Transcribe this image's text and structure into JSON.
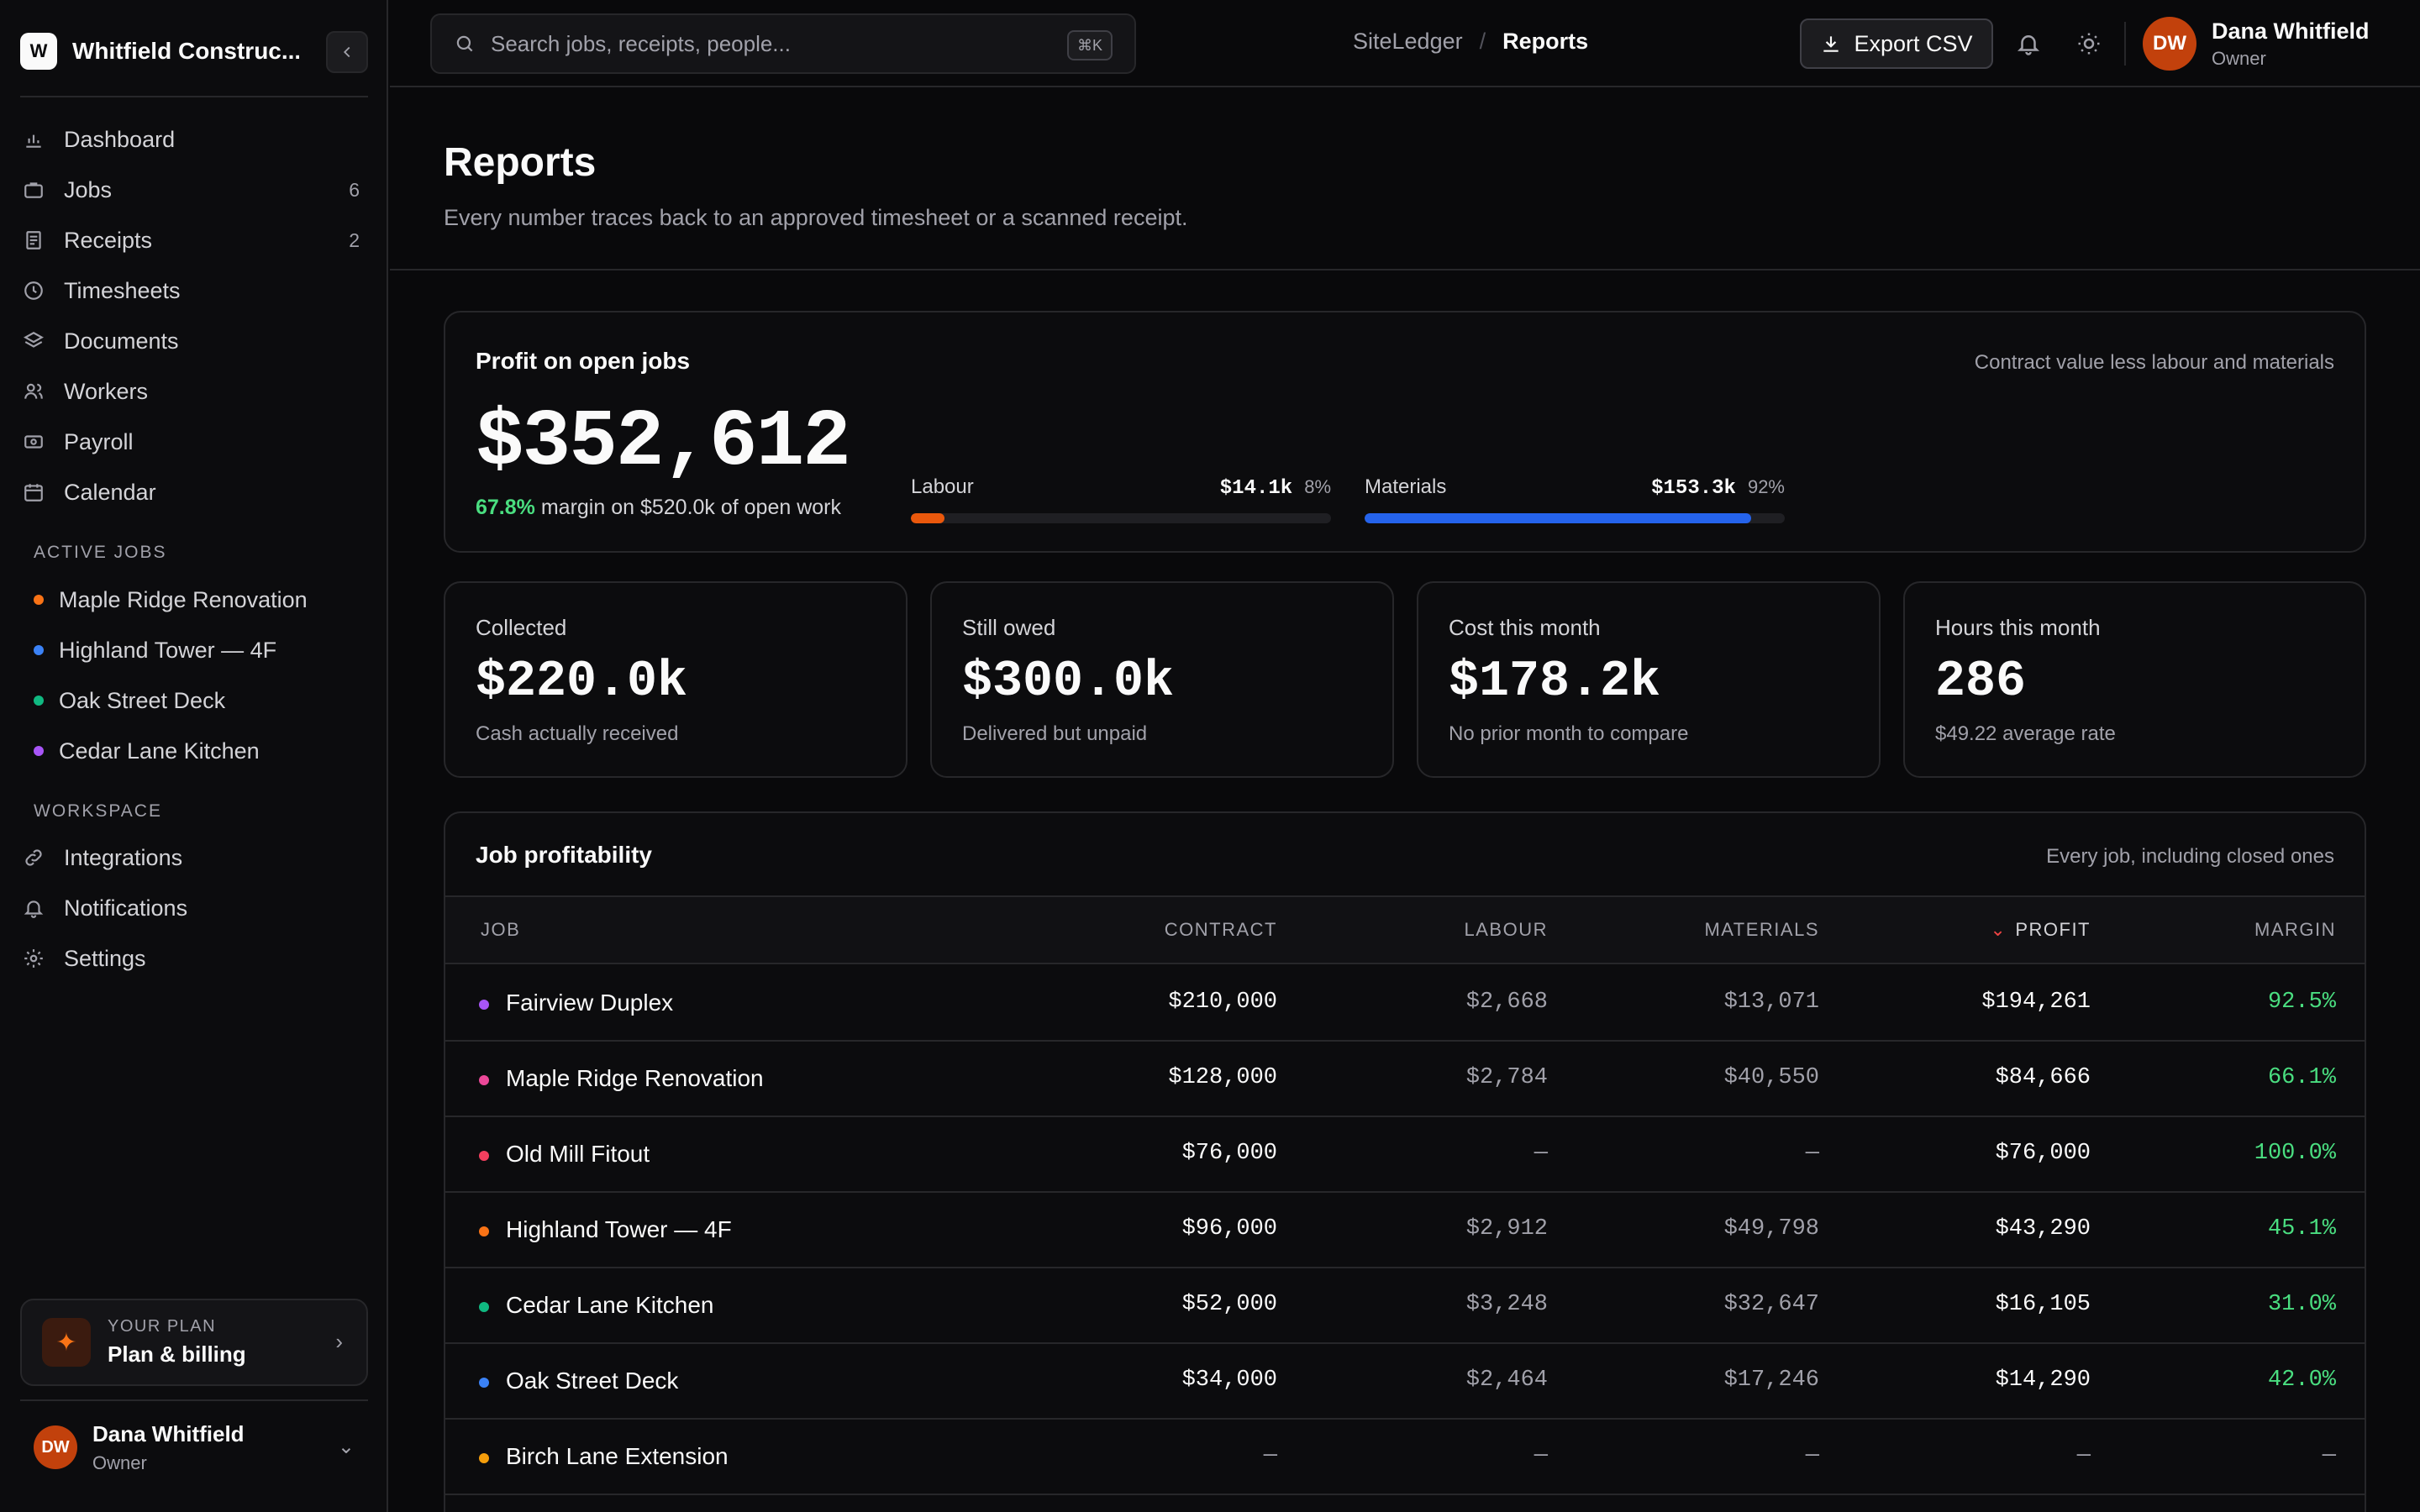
{
  "sidebar": {
    "brand_initial": "W",
    "brand_name": "Whitfield Construc...",
    "nav": [
      {
        "label": "Dashboard",
        "icon": "chart-bar-icon",
        "count": ""
      },
      {
        "label": "Jobs",
        "icon": "briefcase-icon",
        "count": "6"
      },
      {
        "label": "Receipts",
        "icon": "receipt-icon",
        "count": "2"
      },
      {
        "label": "Timesheets",
        "icon": "clock-icon",
        "count": ""
      },
      {
        "label": "Documents",
        "icon": "layers-icon",
        "count": ""
      },
      {
        "label": "Workers",
        "icon": "users-icon",
        "count": ""
      },
      {
        "label": "Payroll",
        "icon": "banknote-icon",
        "count": ""
      },
      {
        "label": "Calendar",
        "icon": "calendar-icon",
        "count": ""
      }
    ],
    "active_jobs_title": "ACTIVE JOBS",
    "active_jobs": [
      {
        "label": "Maple Ridge Renovation",
        "color": "#f97316"
      },
      {
        "label": "Highland Tower — 4F",
        "color": "#3b82f6"
      },
      {
        "label": "Oak Street Deck",
        "color": "#10b981"
      },
      {
        "label": "Cedar Lane Kitchen",
        "color": "#a855f7"
      }
    ],
    "workspace_title": "WORKSPACE",
    "workspace": [
      {
        "label": "Integrations",
        "icon": "link-icon"
      },
      {
        "label": "Notifications",
        "icon": "bell-icon"
      },
      {
        "label": "Settings",
        "icon": "gear-icon"
      }
    ],
    "plan": {
      "kicker": "YOUR PLAN",
      "title": "Plan & billing"
    },
    "user": {
      "initials": "DW",
      "name": "Dana Whitfield",
      "role": "Owner"
    }
  },
  "topbar": {
    "search_placeholder": "Search jobs, receipts, people...",
    "search_shortcut": "⌘K",
    "breadcrumb_root": "SiteLedger",
    "breadcrumb_sep": "/",
    "breadcrumb_current": "Reports",
    "export_label": "Export CSV",
    "user": {
      "initials": "DW",
      "name": "Dana Whitfield",
      "role": "Owner"
    }
  },
  "page": {
    "title": "Reports",
    "subtitle": "Every number traces back to an approved timesheet or a scanned receipt."
  },
  "profit": {
    "title": "Profit on open jobs",
    "note": "Contract value less labour and materials",
    "value": "$352,612",
    "margin_pct": "67.8%",
    "margin_text": " margin on $520.0k of open work",
    "labour": {
      "label": "Labour",
      "amount": "$14.1k",
      "pct_label": "8%",
      "fraction": 0.08,
      "color": "#ea580c"
    },
    "materials": {
      "label": "Materials",
      "amount": "$153.3k",
      "pct_label": "92%",
      "fraction": 0.92,
      "color": "#2563eb"
    }
  },
  "stats": [
    {
      "label": "Collected",
      "value": "$220.0k",
      "sub": "Cash actually received"
    },
    {
      "label": "Still owed",
      "value": "$300.0k",
      "sub": "Delivered but unpaid"
    },
    {
      "label": "Cost this month",
      "value": "$178.2k",
      "sub": "No prior month to compare"
    },
    {
      "label": "Hours this month",
      "value": "286",
      "sub": "$49.22 average rate"
    }
  ],
  "table": {
    "title": "Job profitability",
    "note": "Every job, including closed ones",
    "headers": {
      "job": "JOB",
      "contract": "CONTRACT",
      "labour": "LABOUR",
      "materials": "MATERIALS",
      "profit": "PROFIT",
      "margin": "MARGIN"
    },
    "rows": [
      {
        "job": "Fairview Duplex",
        "color": "#a855f7",
        "contract": "$210,000",
        "labour": "$2,668",
        "materials": "$13,071",
        "profit": "$194,261",
        "margin": "92.5%"
      },
      {
        "job": "Maple Ridge Renovation",
        "color": "#ec4899",
        "contract": "$128,000",
        "labour": "$2,784",
        "materials": "$40,550",
        "profit": "$84,666",
        "margin": "66.1%"
      },
      {
        "job": "Old Mill Fitout",
        "color": "#f43f5e",
        "contract": "$76,000",
        "labour": "—",
        "materials": "—",
        "profit": "$76,000",
        "margin": "100.0%"
      },
      {
        "job": "Highland Tower — 4F",
        "color": "#f97316",
        "contract": "$96,000",
        "labour": "$2,912",
        "materials": "$49,798",
        "profit": "$43,290",
        "margin": "45.1%"
      },
      {
        "job": "Cedar Lane Kitchen",
        "color": "#10b981",
        "contract": "$52,000",
        "labour": "$3,248",
        "materials": "$32,647",
        "profit": "$16,105",
        "margin": "31.0%"
      },
      {
        "job": "Oak Street Deck",
        "color": "#3b82f6",
        "contract": "$34,000",
        "labour": "$2,464",
        "materials": "$17,246",
        "profit": "$14,290",
        "margin": "42.0%"
      },
      {
        "job": "Birch Lane Extension",
        "color": "#f59e0b",
        "contract": "—",
        "labour": "—",
        "materials": "—",
        "profit": "—",
        "margin": "—"
      }
    ]
  }
}
